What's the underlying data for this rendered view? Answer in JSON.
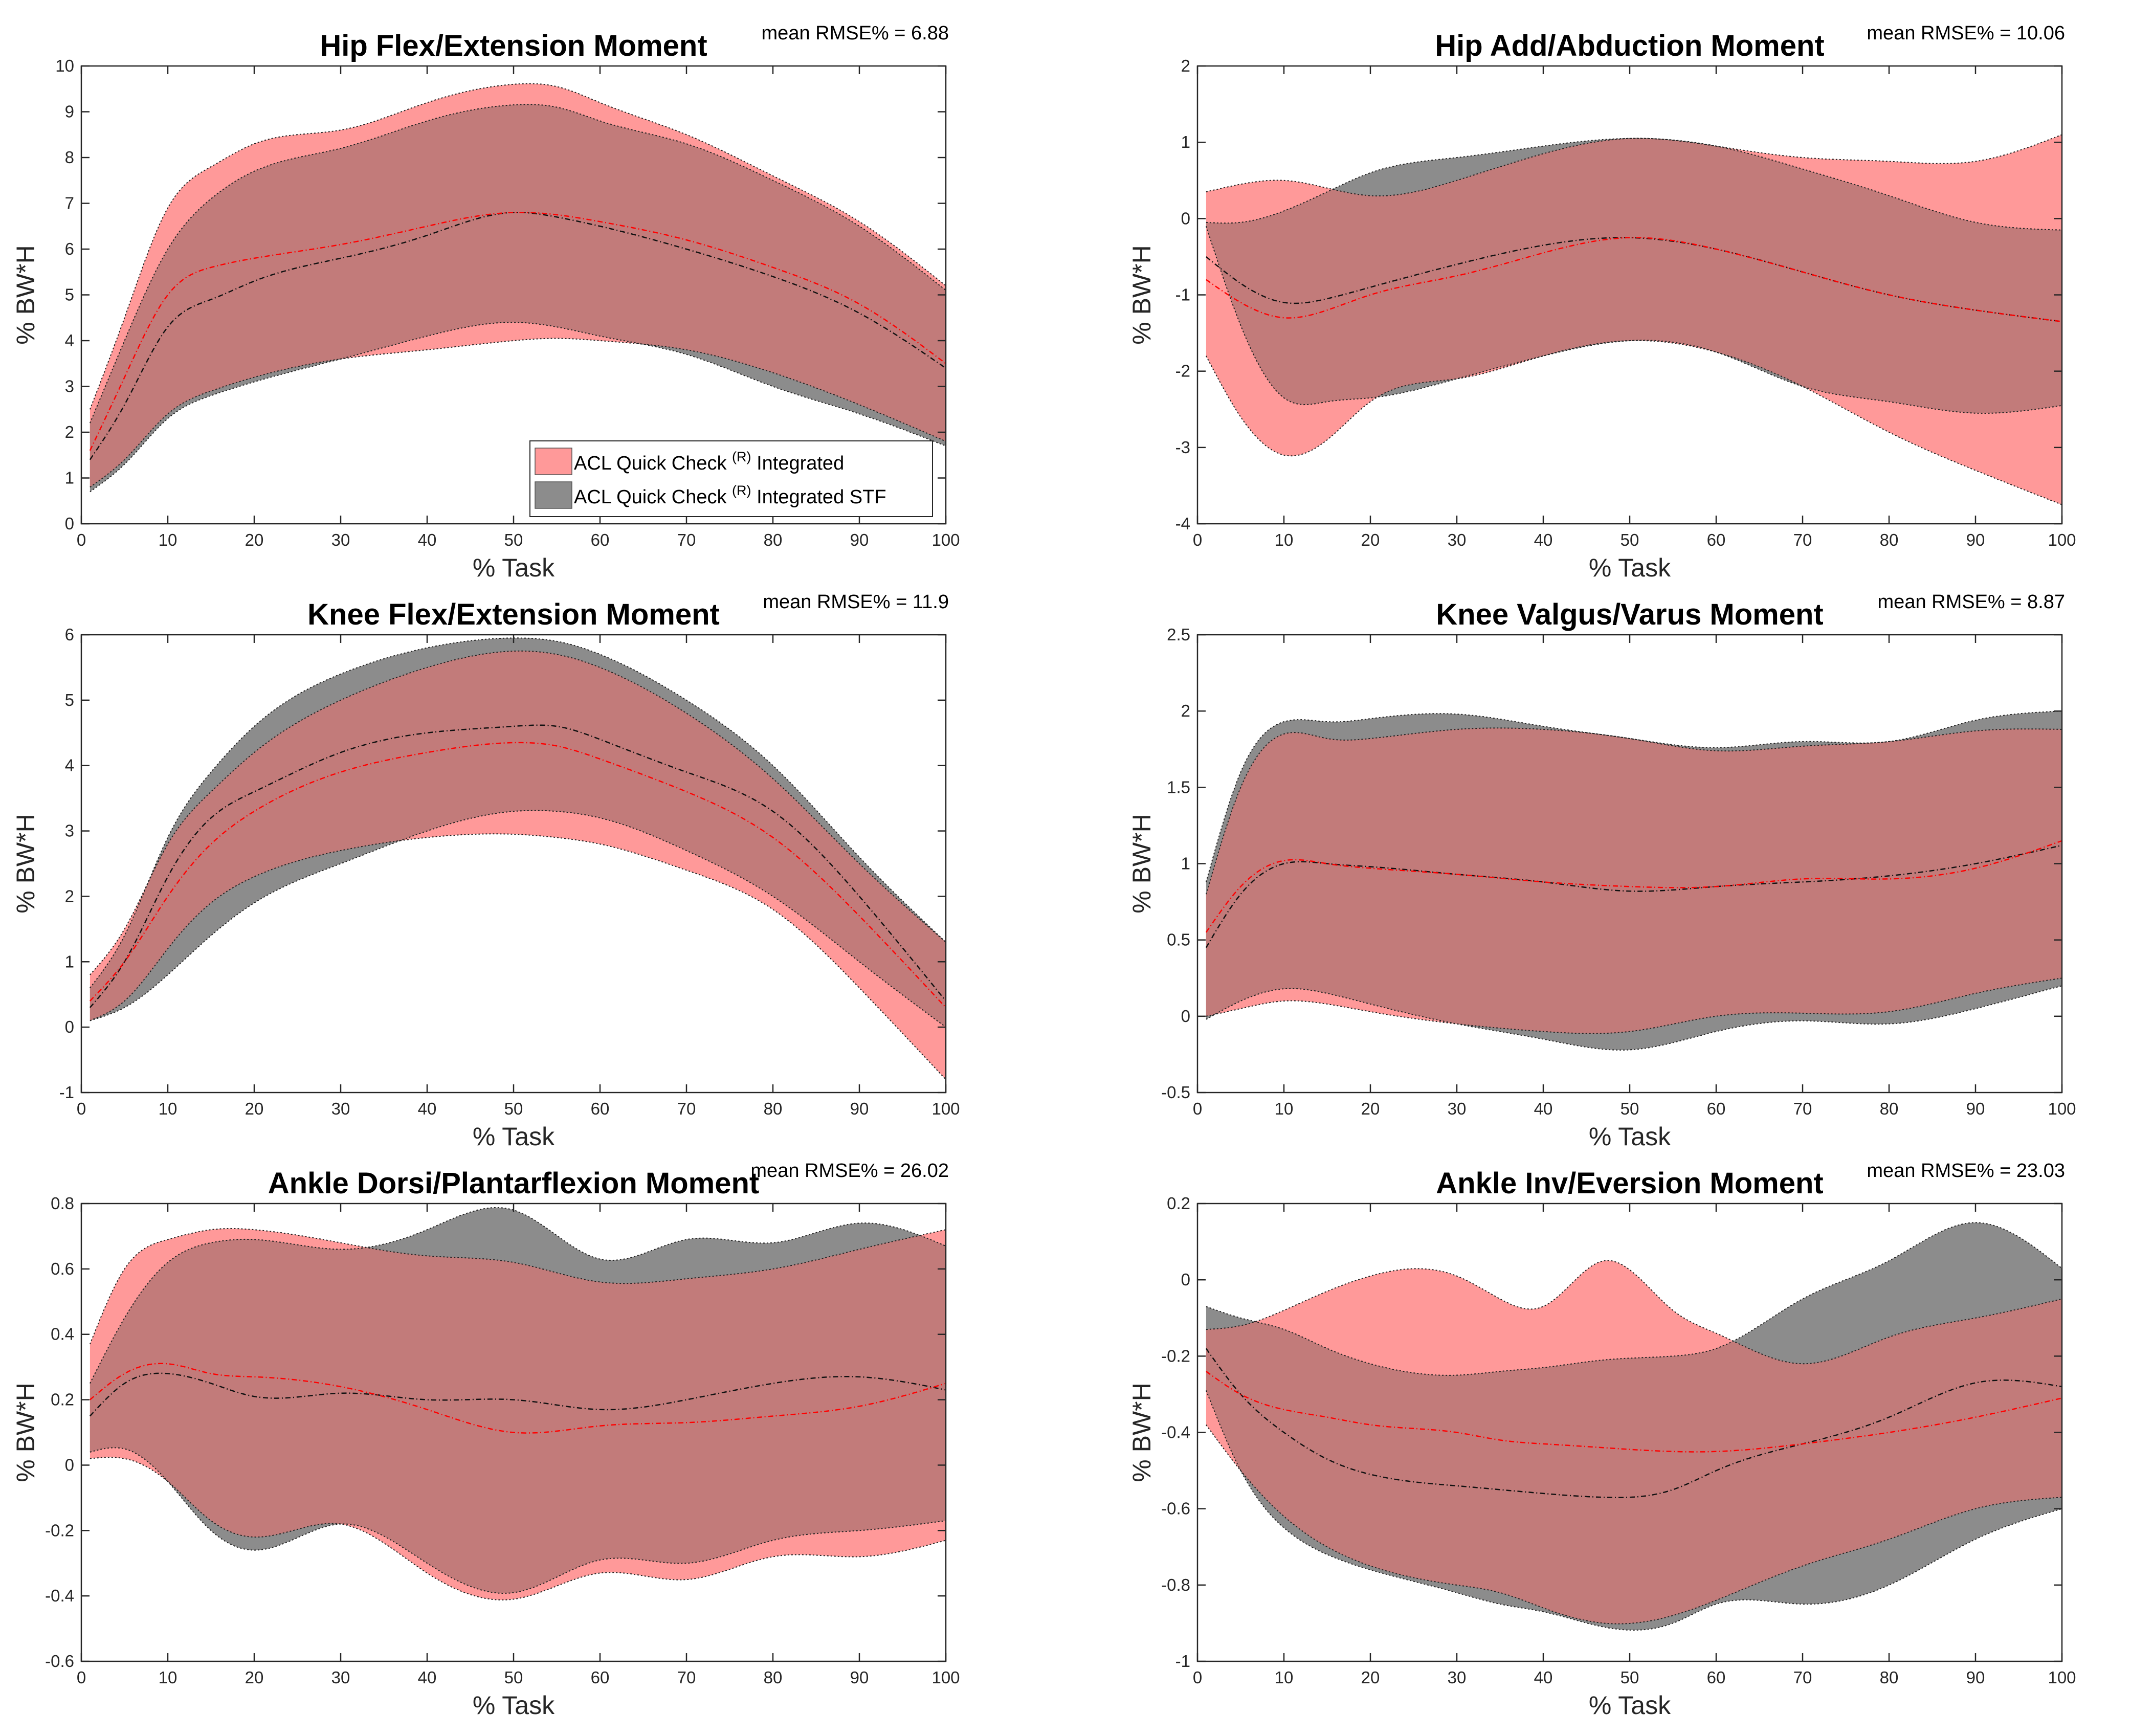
{
  "colors": {
    "integrated": "#ff9999",
    "integrated_stf": "#8c8c8c",
    "overlap": "#c27b7a",
    "mean_integrated": "#ff0000",
    "mean_integrated_stf": "#111111"
  },
  "legend": {
    "prefix": "ACL Quick Check",
    "superscript": "(R)",
    "items": [
      {
        "label": "Integrated",
        "color_key": "integrated"
      },
      {
        "label": "Integrated STF",
        "color_key": "integrated_stf"
      }
    ]
  },
  "chart_data": [
    {
      "type": "area",
      "title": "Hip Flex/Extension Moment",
      "rmse_label": "mean RMSE% = 6.88",
      "xlabel": "% Task",
      "ylabel": "% BW*H",
      "xlim": [
        0,
        100
      ],
      "ylim": [
        0,
        10
      ],
      "xticks": [
        0,
        10,
        20,
        30,
        40,
        50,
        60,
        70,
        80,
        90,
        100
      ],
      "yticks": [
        0,
        1,
        2,
        3,
        4,
        5,
        6,
        7,
        8,
        9,
        10
      ],
      "x": [
        1,
        5,
        10,
        15,
        20,
        30,
        40,
        50,
        55,
        60,
        70,
        80,
        90,
        100
      ],
      "series": [
        {
          "name": "ACL Quick Check (R) Integrated",
          "upper": [
            2.5,
            4.5,
            6.9,
            7.8,
            8.3,
            8.6,
            9.2,
            9.6,
            9.55,
            9.2,
            8.5,
            7.6,
            6.6,
            5.2
          ],
          "mean": [
            1.6,
            3.2,
            5.0,
            5.6,
            5.8,
            6.1,
            6.5,
            6.8,
            6.75,
            6.6,
            6.2,
            5.6,
            4.8,
            3.5
          ],
          "lower": [
            0.8,
            1.4,
            2.4,
            2.9,
            3.2,
            3.6,
            3.8,
            4.0,
            4.05,
            4.0,
            3.8,
            3.3,
            2.6,
            1.8
          ]
        },
        {
          "name": "ACL Quick Check (R) Integrated STF",
          "upper": [
            2.2,
            4.0,
            6.0,
            7.1,
            7.7,
            8.2,
            8.8,
            9.15,
            9.1,
            8.8,
            8.3,
            7.5,
            6.5,
            5.1
          ],
          "mean": [
            1.4,
            2.6,
            4.3,
            4.9,
            5.3,
            5.8,
            6.3,
            6.8,
            6.7,
            6.5,
            6.0,
            5.4,
            4.6,
            3.4
          ],
          "lower": [
            0.7,
            1.3,
            2.3,
            2.8,
            3.1,
            3.6,
            4.1,
            4.4,
            4.3,
            4.1,
            3.7,
            3.0,
            2.4,
            1.7
          ]
        }
      ]
    },
    {
      "type": "area",
      "title": "Hip Add/Abduction Moment",
      "rmse_label": "mean RMSE% = 10.06",
      "xlabel": "% Task",
      "ylabel": "% BW*H",
      "xlim": [
        0,
        100
      ],
      "ylim": [
        -4,
        2
      ],
      "xticks": [
        0,
        10,
        20,
        30,
        40,
        50,
        60,
        70,
        80,
        90,
        100
      ],
      "yticks": [
        -4,
        -3,
        -2,
        -1,
        0,
        1,
        2
      ],
      "x": [
        1,
        5,
        10,
        15,
        20,
        30,
        40,
        50,
        60,
        70,
        80,
        90,
        100
      ],
      "series": [
        {
          "name": "ACL Quick Check (R) Integrated",
          "upper": [
            0.35,
            0.45,
            0.5,
            0.4,
            0.3,
            0.5,
            0.85,
            1.05,
            0.95,
            0.8,
            0.75,
            0.75,
            1.1
          ],
          "mean": [
            -0.8,
            -1.1,
            -1.3,
            -1.2,
            -1.0,
            -0.75,
            -0.45,
            -0.25,
            -0.4,
            -0.7,
            -1.0,
            -1.2,
            -1.35
          ],
          "lower": [
            -1.8,
            -2.6,
            -3.1,
            -2.9,
            -2.4,
            -2.1,
            -1.8,
            -1.6,
            -1.75,
            -2.2,
            -2.8,
            -3.3,
            -3.75
          ]
        },
        {
          "name": "ACL Quick Check (R) Integrated STF",
          "upper": [
            -0.05,
            -0.05,
            0.1,
            0.35,
            0.6,
            0.8,
            0.95,
            1.05,
            0.95,
            0.65,
            0.3,
            -0.05,
            -0.15
          ],
          "mean": [
            -0.5,
            -0.85,
            -1.1,
            -1.05,
            -0.9,
            -0.6,
            -0.35,
            -0.25,
            -0.4,
            -0.7,
            -1.0,
            -1.2,
            -1.35
          ],
          "lower": [
            -0.1,
            -1.4,
            -2.35,
            -2.4,
            -2.35,
            -2.1,
            -1.8,
            -1.6,
            -1.75,
            -2.2,
            -2.4,
            -2.55,
            -2.45
          ]
        }
      ]
    },
    {
      "type": "area",
      "title": "Knee Flex/Extension Moment",
      "rmse_label": "mean RMSE% = 11.9",
      "xlabel": "% Task",
      "ylabel": "% BW*H",
      "xlim": [
        0,
        100
      ],
      "ylim": [
        -1,
        6
      ],
      "xticks": [
        0,
        10,
        20,
        30,
        40,
        50,
        60,
        70,
        80,
        90,
        100
      ],
      "yticks": [
        -1,
        0,
        1,
        2,
        3,
        4,
        5,
        6
      ],
      "x": [
        1,
        5,
        10,
        15,
        20,
        30,
        40,
        50,
        55,
        60,
        70,
        80,
        90,
        100
      ],
      "series": [
        {
          "name": "ACL Quick Check (R) Integrated",
          "upper": [
            0.8,
            1.5,
            2.8,
            3.6,
            4.2,
            5.0,
            5.5,
            5.75,
            5.7,
            5.5,
            4.8,
            3.8,
            2.5,
            1.3
          ],
          "mean": [
            0.4,
            1.0,
            2.0,
            2.8,
            3.3,
            3.9,
            4.2,
            4.35,
            4.3,
            4.1,
            3.6,
            2.9,
            1.7,
            0.3
          ],
          "lower": [
            0.1,
            0.4,
            1.2,
            1.9,
            2.3,
            2.7,
            2.9,
            2.95,
            2.9,
            2.8,
            2.4,
            1.8,
            0.6,
            -0.8
          ]
        },
        {
          "name": "ACL Quick Check (R) Integrated STF",
          "upper": [
            0.6,
            1.4,
            2.9,
            3.9,
            4.6,
            5.4,
            5.8,
            5.95,
            5.9,
            5.7,
            5.0,
            4.0,
            2.6,
            1.3
          ],
          "mean": [
            0.3,
            1.0,
            2.3,
            3.2,
            3.6,
            4.2,
            4.5,
            4.6,
            4.6,
            4.4,
            3.9,
            3.3,
            2.0,
            0.4
          ],
          "lower": [
            0.1,
            0.3,
            0.8,
            1.4,
            1.9,
            2.5,
            3.0,
            3.3,
            3.3,
            3.2,
            2.7,
            2.0,
            1.0,
            0.0
          ]
        }
      ]
    },
    {
      "type": "area",
      "title": "Knee Valgus/Varus Moment",
      "rmse_label": "mean RMSE% = 8.87",
      "xlabel": "% Task",
      "ylabel": "% BW*H",
      "xlim": [
        0,
        100
      ],
      "ylim": [
        -0.5,
        2.5
      ],
      "xticks": [
        0,
        10,
        20,
        30,
        40,
        50,
        60,
        70,
        80,
        90,
        100
      ],
      "yticks": [
        -0.5,
        0,
        0.5,
        1,
        1.5,
        2,
        2.5
      ],
      "x": [
        1,
        5,
        10,
        15,
        20,
        30,
        40,
        50,
        60,
        70,
        80,
        90,
        100
      ],
      "series": [
        {
          "name": "ACL Quick Check (R) Integrated",
          "upper": [
            0.8,
            1.5,
            1.85,
            1.82,
            1.82,
            1.88,
            1.88,
            1.82,
            1.74,
            1.77,
            1.8,
            1.87,
            1.88
          ],
          "mean": [
            0.55,
            0.85,
            1.02,
            1.0,
            0.97,
            0.93,
            0.88,
            0.85,
            0.85,
            0.9,
            0.9,
            0.97,
            1.15
          ],
          "lower": [
            0.0,
            0.05,
            0.1,
            0.08,
            0.03,
            -0.05,
            -0.1,
            -0.1,
            0.0,
            0.02,
            0.03,
            0.15,
            0.25
          ]
        },
        {
          "name": "ACL Quick Check (R) Integrated STF",
          "upper": [
            0.88,
            1.6,
            1.93,
            1.93,
            1.95,
            1.98,
            1.9,
            1.82,
            1.76,
            1.8,
            1.8,
            1.94,
            2.0
          ],
          "mean": [
            0.45,
            0.8,
            1.0,
            1.0,
            0.98,
            0.93,
            0.88,
            0.82,
            0.85,
            0.88,
            0.92,
            1.0,
            1.12
          ],
          "lower": [
            -0.02,
            0.1,
            0.18,
            0.15,
            0.08,
            -0.05,
            -0.15,
            -0.22,
            -0.1,
            -0.03,
            -0.05,
            0.05,
            0.2
          ]
        }
      ]
    },
    {
      "type": "area",
      "title": "Ankle Dorsi/Plantarflexion Moment",
      "rmse_label": "mean RMSE% = 26.02",
      "xlabel": "% Task",
      "ylabel": "% BW*H",
      "xlim": [
        0,
        100
      ],
      "ylim": [
        -0.6,
        0.8
      ],
      "xticks": [
        0,
        10,
        20,
        30,
        40,
        50,
        60,
        70,
        80,
        90,
        100
      ],
      "yticks": [
        -0.6,
        -0.4,
        -0.2,
        0,
        0.2,
        0.4,
        0.6,
        0.8
      ],
      "x": [
        1,
        5,
        10,
        15,
        20,
        30,
        40,
        50,
        60,
        70,
        80,
        90,
        100
      ],
      "series": [
        {
          "name": "ACL Quick Check (R) Integrated",
          "upper": [
            0.37,
            0.6,
            0.69,
            0.72,
            0.72,
            0.68,
            0.64,
            0.62,
            0.56,
            0.57,
            0.6,
            0.66,
            0.72
          ],
          "mean": [
            0.2,
            0.28,
            0.31,
            0.28,
            0.27,
            0.24,
            0.17,
            0.1,
            0.12,
            0.13,
            0.15,
            0.18,
            0.25
          ],
          "lower": [
            0.02,
            0.02,
            -0.05,
            -0.17,
            -0.22,
            -0.18,
            -0.33,
            -0.41,
            -0.33,
            -0.35,
            -0.28,
            -0.28,
            -0.23
          ]
        },
        {
          "name": "ACL Quick Check (R) Integrated STF",
          "upper": [
            0.25,
            0.45,
            0.62,
            0.68,
            0.69,
            0.66,
            0.72,
            0.78,
            0.63,
            0.69,
            0.68,
            0.74,
            0.67
          ],
          "mean": [
            0.15,
            0.25,
            0.28,
            0.25,
            0.21,
            0.22,
            0.2,
            0.2,
            0.17,
            0.2,
            0.25,
            0.27,
            0.23
          ],
          "lower": [
            0.04,
            0.05,
            -0.05,
            -0.2,
            -0.26,
            -0.18,
            -0.3,
            -0.39,
            -0.29,
            -0.3,
            -0.23,
            -0.2,
            -0.17
          ]
        }
      ]
    },
    {
      "type": "area",
      "title": "Ankle Inv/Eversion Moment",
      "rmse_label": "mean RMSE% = 23.03",
      "xlabel": "% Task",
      "ylabel": "% BW*H",
      "xlim": [
        0,
        100
      ],
      "ylim": [
        -1,
        0.2
      ],
      "xticks": [
        0,
        10,
        20,
        30,
        40,
        50,
        60,
        70,
        80,
        90,
        100
      ],
      "yticks": [
        -1,
        -0.8,
        -0.6,
        -0.4,
        -0.2,
        0,
        0.2
      ],
      "x": [
        1,
        5,
        10,
        15,
        20,
        30,
        35,
        40,
        47,
        55,
        60,
        70,
        80,
        90,
        100
      ],
      "series": [
        {
          "name": "ACL Quick Check (R) Integrated",
          "upper": [
            -0.13,
            -0.12,
            -0.08,
            -0.03,
            0.01,
            0.01,
            -0.05,
            -0.07,
            0.05,
            -0.08,
            -0.14,
            -0.22,
            -0.15,
            -0.1,
            -0.05
          ],
          "mean": [
            -0.24,
            -0.3,
            -0.34,
            -0.36,
            -0.38,
            -0.4,
            -0.42,
            -0.43,
            -0.44,
            -0.45,
            -0.45,
            -0.43,
            -0.4,
            -0.36,
            -0.31
          ],
          "lower": [
            -0.38,
            -0.5,
            -0.62,
            -0.7,
            -0.75,
            -0.8,
            -0.82,
            -0.86,
            -0.9,
            -0.88,
            -0.84,
            -0.75,
            -0.68,
            -0.6,
            -0.57
          ]
        },
        {
          "name": "ACL Quick Check (R) Integrated STF",
          "upper": [
            -0.07,
            -0.1,
            -0.13,
            -0.18,
            -0.22,
            -0.25,
            -0.24,
            -0.23,
            -0.21,
            -0.2,
            -0.18,
            -0.05,
            0.05,
            0.15,
            0.03
          ],
          "mean": [
            -0.18,
            -0.3,
            -0.4,
            -0.47,
            -0.51,
            -0.54,
            -0.55,
            -0.56,
            -0.57,
            -0.55,
            -0.5,
            -0.43,
            -0.36,
            -0.27,
            -0.28
          ],
          "lower": [
            -0.29,
            -0.5,
            -0.65,
            -0.72,
            -0.76,
            -0.82,
            -0.85,
            -0.87,
            -0.91,
            -0.9,
            -0.85,
            -0.85,
            -0.8,
            -0.68,
            -0.6
          ]
        }
      ]
    }
  ]
}
